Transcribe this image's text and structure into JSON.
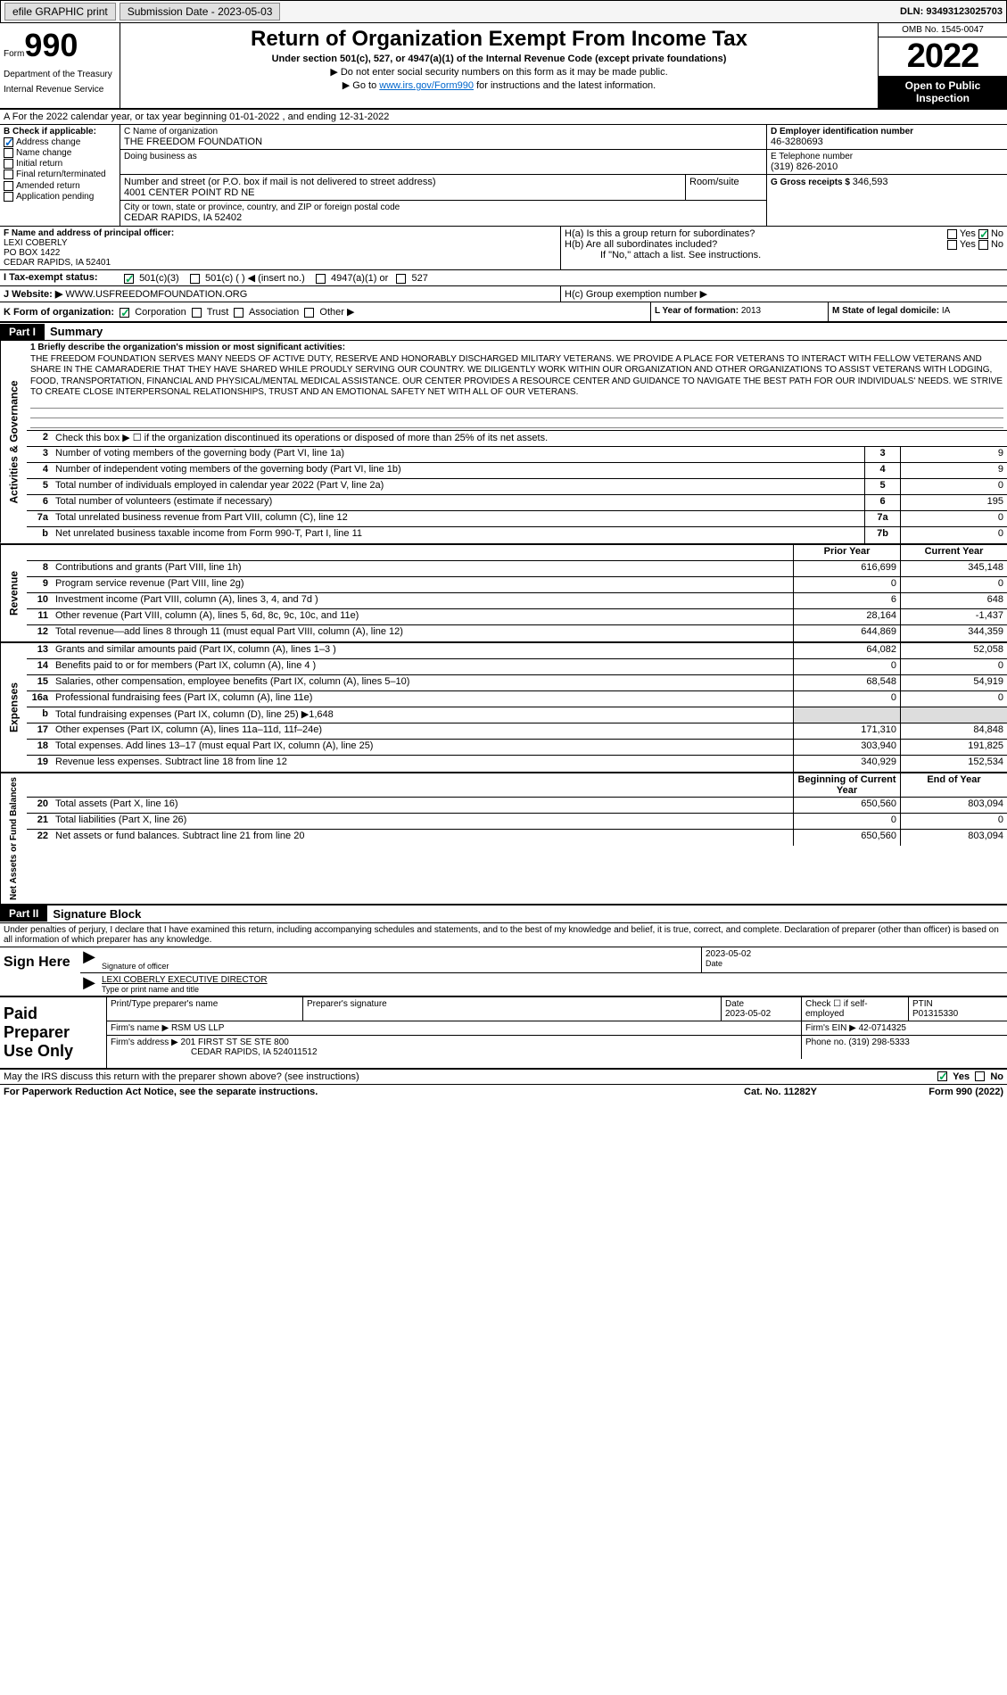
{
  "topbar": {
    "efile": "efile GRAPHIC print",
    "submission_label": "Submission Date - 2023-05-03",
    "dln": "DLN: 93493123025703"
  },
  "header": {
    "form_word": "Form",
    "form_num": "990",
    "dept": "Department of the Treasury",
    "irs": "Internal Revenue Service",
    "title": "Return of Organization Exempt From Income Tax",
    "sub": "Under section 501(c), 527, or 4947(a)(1) of the Internal Revenue Code (except private foundations)",
    "note1": "▶ Do not enter social security numbers on this form as it may be made public.",
    "note2_prefix": "▶ Go to ",
    "note2_link": "www.irs.gov/Form990",
    "note2_suffix": " for instructions and the latest information.",
    "omb": "OMB No. 1545-0047",
    "year": "2022",
    "open": "Open to Public Inspection"
  },
  "row_a": "A For the 2022 calendar year, or tax year beginning 01-01-2022   , and ending 12-31-2022",
  "section_b": {
    "label": "B Check if applicable:",
    "opts": [
      "Address change",
      "Name change",
      "Initial return",
      "Final return/terminated",
      "Amended return",
      "Application pending"
    ],
    "checked_idx": 0
  },
  "section_c": {
    "name_label": "C Name of organization",
    "name": "THE FREEDOM FOUNDATION",
    "dba_label": "Doing business as",
    "dba": "",
    "addr_label": "Number and street (or P.O. box if mail is not delivered to street address)",
    "addr": "4001 CENTER POINT RD NE",
    "room_label": "Room/suite",
    "city_label": "City or town, state or province, country, and ZIP or foreign postal code",
    "city": "CEDAR RAPIDS, IA  52402"
  },
  "section_d": {
    "label": "D Employer identification number",
    "ein": "46-3280693",
    "phone_label": "E Telephone number",
    "phone": "(319) 826-2010",
    "gross_label": "G Gross receipts $",
    "gross": "346,593"
  },
  "section_f": {
    "label": "F  Name and address of principal officer:",
    "name": "LEXI COBERLY",
    "addr1": "PO BOX 1422",
    "addr2": "CEDAR RAPIDS, IA  52401"
  },
  "section_h": {
    "ha": "H(a)  Is this a group return for subordinates?",
    "hb": "H(b)  Are all subordinates included?",
    "hb_note": "If \"No,\" attach a list. See instructions.",
    "hc": "H(c)  Group exemption number ▶",
    "yes": "Yes",
    "no": "No"
  },
  "row_i": {
    "label": "I   Tax-exempt status:",
    "c3": "501(c)(3)",
    "c": "501(c) (  ) ◀ (insert no.)",
    "a1": "4947(a)(1) or",
    "s527": "527"
  },
  "row_j": {
    "label": "J  Website: ▶",
    "url": " WWW.USFREEDOMFOUNDATION.ORG"
  },
  "row_k": {
    "label": "K Form of organization:",
    "corp": "Corporation",
    "trust": "Trust",
    "assoc": "Association",
    "other": "Other ▶",
    "l_label": "L Year of formation:",
    "l_val": "2013",
    "m_label": "M State of legal domicile:",
    "m_val": "IA"
  },
  "parts": {
    "p1": "Part I",
    "p1_title": "Summary",
    "p2": "Part II",
    "p2_title": "Signature Block"
  },
  "side_labels": {
    "gov": "Activities & Governance",
    "rev": "Revenue",
    "exp": "Expenses",
    "net": "Net Assets or Fund Balances"
  },
  "mission": {
    "label": "1   Briefly describe the organization's mission or most significant activities:",
    "text": "THE FREEDOM FOUNDATION SERVES MANY NEEDS OF ACTIVE DUTY, RESERVE AND HONORABLY DISCHARGED MILITARY VETERANS. WE PROVIDE A PLACE FOR VETERANS TO INTERACT WITH FELLOW VETERANS AND SHARE IN THE CAMARADERIE THAT THEY HAVE SHARED WHILE PROUDLY SERVING OUR COUNTRY. WE DILIGENTLY WORK WITHIN OUR ORGANIZATION AND OTHER ORGANIZATIONS TO ASSIST VETERANS WITH LODGING, FOOD, TRANSPORTATION, FINANCIAL AND PHYSICAL/MENTAL MEDICAL ASSISTANCE. OUR CENTER PROVIDES A RESOURCE CENTER AND GUIDANCE TO NAVIGATE THE BEST PATH FOR OUR INDIVIDUALS' NEEDS. WE STRIVE TO CREATE CLOSE INTERPERSONAL RELATIONSHIPS, TRUST AND AN EMOTIONAL SAFETY NET WITH ALL OF OUR VETERANS."
  },
  "gov_rows": [
    {
      "n": "2",
      "d": "Check this box ▶ ☐ if the organization discontinued its operations or disposed of more than 25% of its net assets."
    },
    {
      "n": "3",
      "d": "Number of voting members of the governing body (Part VI, line 1a)",
      "box": "3",
      "v": "9"
    },
    {
      "n": "4",
      "d": "Number of independent voting members of the governing body (Part VI, line 1b)",
      "box": "4",
      "v": "9"
    },
    {
      "n": "5",
      "d": "Total number of individuals employed in calendar year 2022 (Part V, line 2a)",
      "box": "5",
      "v": "0"
    },
    {
      "n": "6",
      "d": "Total number of volunteers (estimate if necessary)",
      "box": "6",
      "v": "195"
    },
    {
      "n": "7a",
      "d": "Total unrelated business revenue from Part VIII, column (C), line 12",
      "box": "7a",
      "v": "0"
    },
    {
      "n": "b",
      "d": "Net unrelated business taxable income from Form 990-T, Part I, line 11",
      "box": "7b",
      "v": "0"
    }
  ],
  "col_hdrs": {
    "prior": "Prior Year",
    "current": "Current Year",
    "beg": "Beginning of Current Year",
    "end": "End of Year"
  },
  "rev_rows": [
    {
      "n": "8",
      "d": "Contributions and grants (Part VIII, line 1h)",
      "p": "616,699",
      "c": "345,148"
    },
    {
      "n": "9",
      "d": "Program service revenue (Part VIII, line 2g)",
      "p": "0",
      "c": "0"
    },
    {
      "n": "10",
      "d": "Investment income (Part VIII, column (A), lines 3, 4, and 7d )",
      "p": "6",
      "c": "648"
    },
    {
      "n": "11",
      "d": "Other revenue (Part VIII, column (A), lines 5, 6d, 8c, 9c, 10c, and 11e)",
      "p": "28,164",
      "c": "-1,437"
    },
    {
      "n": "12",
      "d": "Total revenue—add lines 8 through 11 (must equal Part VIII, column (A), line 12)",
      "p": "644,869",
      "c": "344,359"
    }
  ],
  "exp_rows": [
    {
      "n": "13",
      "d": "Grants and similar amounts paid (Part IX, column (A), lines 1–3 )",
      "p": "64,082",
      "c": "52,058"
    },
    {
      "n": "14",
      "d": "Benefits paid to or for members (Part IX, column (A), line 4 )",
      "p": "0",
      "c": "0"
    },
    {
      "n": "15",
      "d": "Salaries, other compensation, employee benefits (Part IX, column (A), lines 5–10)",
      "p": "68,548",
      "c": "54,919"
    },
    {
      "n": "16a",
      "d": "Professional fundraising fees (Part IX, column (A), line 11e)",
      "p": "0",
      "c": "0"
    },
    {
      "n": "b",
      "d": "Total fundraising expenses (Part IX, column (D), line 25) ▶1,648",
      "shaded": true
    },
    {
      "n": "17",
      "d": "Other expenses (Part IX, column (A), lines 11a–11d, 11f–24e)",
      "p": "171,310",
      "c": "84,848"
    },
    {
      "n": "18",
      "d": "Total expenses. Add lines 13–17 (must equal Part IX, column (A), line 25)",
      "p": "303,940",
      "c": "191,825"
    },
    {
      "n": "19",
      "d": "Revenue less expenses. Subtract line 18 from line 12",
      "p": "340,929",
      "c": "152,534"
    }
  ],
  "net_rows": [
    {
      "n": "20",
      "d": "Total assets (Part X, line 16)",
      "p": "650,560",
      "c": "803,094"
    },
    {
      "n": "21",
      "d": "Total liabilities (Part X, line 26)",
      "p": "0",
      "c": "0"
    },
    {
      "n": "22",
      "d": "Net assets or fund balances. Subtract line 21 from line 20",
      "p": "650,560",
      "c": "803,094"
    }
  ],
  "sig": {
    "perjury": "Under penalties of perjury, I declare that I have examined this return, including accompanying schedules and statements, and to the best of my knowledge and belief, it is true, correct, and complete. Declaration of preparer (other than officer) is based on all information of which preparer has any knowledge.",
    "sign_here": "Sign Here",
    "sig_officer": "Signature of officer",
    "date_lbl": "Date",
    "date_val": "2023-05-02",
    "name_title": "LEXI COBERLY EXECUTIVE DIRECTOR",
    "type_lbl": "Type or print name and title"
  },
  "prep": {
    "title": "Paid Preparer Use Only",
    "print_lbl": "Print/Type preparer's name",
    "sig_lbl": "Preparer's signature",
    "date_lbl": "Date",
    "date_val": "2023-05-02",
    "check_lbl": "Check ☐ if self-employed",
    "ptin_lbl": "PTIN",
    "ptin": "P01315330",
    "firm_name_lbl": "Firm's name    ▶",
    "firm_name": "RSM US LLP",
    "firm_ein_lbl": "Firm's EIN ▶",
    "firm_ein": "42-0714325",
    "firm_addr_lbl": "Firm's address ▶",
    "firm_addr": "201 FIRST ST SE STE 800",
    "firm_city": "CEDAR RAPIDS, IA  524011512",
    "phone_lbl": "Phone no.",
    "phone": "(319) 298-5333"
  },
  "footer": {
    "discuss": "May the IRS discuss this return with the preparer shown above? (see instructions)",
    "yes": "Yes",
    "no": "No",
    "paperwork": "For Paperwork Reduction Act Notice, see the separate instructions.",
    "cat": "Cat. No. 11282Y",
    "form": "Form 990 (2022)"
  }
}
